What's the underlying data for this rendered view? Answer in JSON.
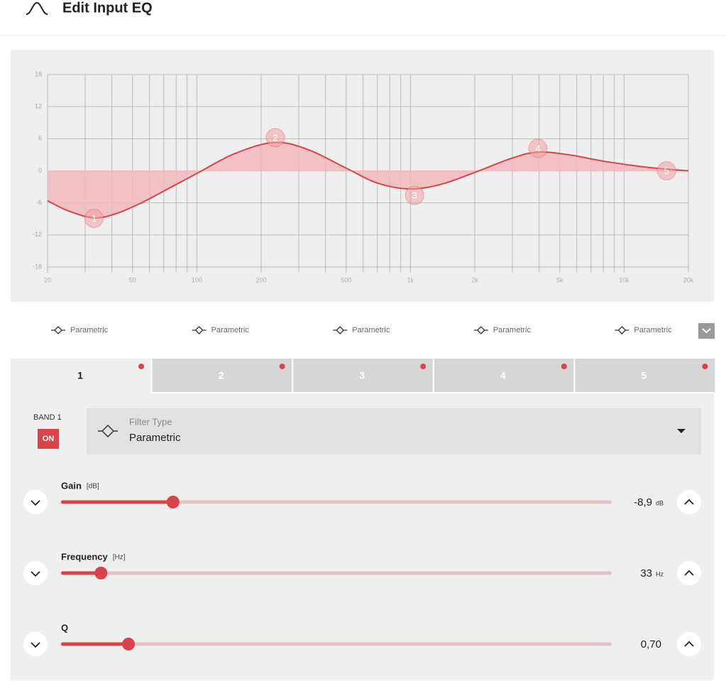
{
  "header": {
    "title": "Edit Input EQ"
  },
  "chart_data": {
    "type": "line",
    "xscale": "log",
    "xlim": [
      20,
      20000
    ],
    "ylim": [
      -18,
      18
    ],
    "xticks": [
      20,
      50,
      100,
      200,
      500,
      {
        "value": 1000,
        "label": "1k"
      },
      {
        "value": 2000,
        "label": "2k"
      },
      {
        "value": 5000,
        "label": "5k"
      },
      {
        "value": 10000,
        "label": "10k"
      },
      {
        "value": 20000,
        "label": "20k"
      }
    ],
    "xgrid": [
      30,
      40,
      60,
      70,
      80,
      90,
      300,
      400,
      600,
      700,
      800,
      900,
      3000,
      4000,
      6000,
      7000,
      8000,
      9000
    ],
    "yticks": [
      -18,
      -12,
      -6,
      0,
      6,
      12,
      18
    ],
    "grid": true,
    "color": "#d9434b",
    "fill": "#f2b9bd",
    "x": [
      20,
      25,
      33,
      42,
      55,
      70,
      100,
      150,
      230,
      330,
      500,
      700,
      1000,
      1400,
      2000,
      3000,
      3950,
      5500,
      8000,
      12000,
      16000,
      20000
    ],
    "values": [
      -5.6,
      -7.5,
      -8.8,
      -8.0,
      -6.0,
      -3.8,
      -0.5,
      3.2,
      5.3,
      4.0,
      0.5,
      -2.3,
      -3.4,
      -2.5,
      -0.3,
      2.4,
      3.5,
      3.0,
      1.8,
      0.8,
      0.3,
      0
    ],
    "points": {
      "labels": [
        "1",
        "2",
        "3",
        "4",
        "5"
      ],
      "x": [
        33,
        233,
        1045,
        3950,
        15800
      ],
      "y": [
        -8.9,
        6.2,
        -4.6,
        4.2,
        0
      ]
    }
  },
  "filter_row": {
    "labels": [
      "Parametric",
      "Parametric",
      "Parametric",
      "Parametric",
      "Parametric"
    ]
  },
  "tabs": [
    "1",
    "2",
    "3",
    "4",
    "5"
  ],
  "band": {
    "label": "BAND 1",
    "state": "ON",
    "filter_type_label": "Filter Type",
    "filter_type": "Parametric"
  },
  "sliders": [
    {
      "name": "Gain",
      "unit": "[dB]",
      "value": -8.9,
      "value_label": "-8,9",
      "value_unit": "dB",
      "min": -15,
      "max": 15,
      "scale": "linear"
    },
    {
      "name": "Frequency",
      "unit": "[Hz]",
      "value": 33,
      "value_label": "33",
      "value_unit": "Hz",
      "min": 20,
      "max": 20000,
      "scale": "log"
    },
    {
      "name": "Q",
      "value": 0.7,
      "value_label": "0,70",
      "min": 0.1,
      "max": 5,
      "scale": "linear"
    }
  ]
}
